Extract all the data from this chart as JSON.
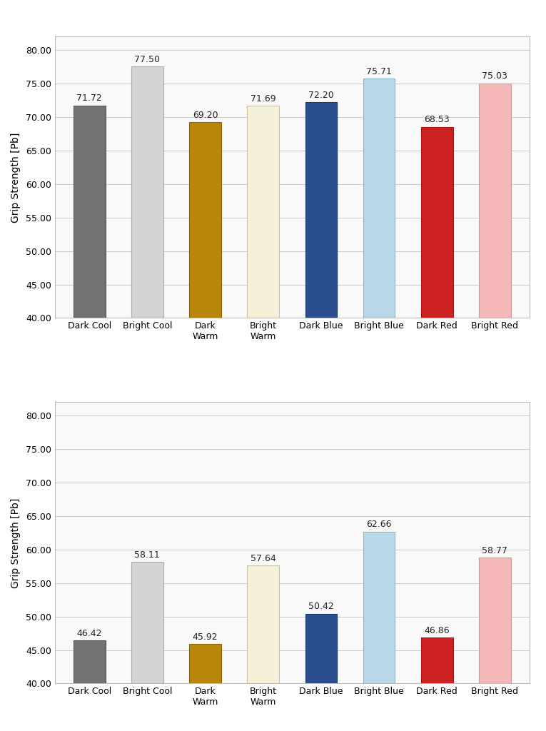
{
  "top_chart": {
    "categories": [
      "Dark Cool",
      "Bright Cool",
      "Dark\nWarm",
      "Bright\nWarm",
      "Dark Blue",
      "Bright Blue",
      "Dark Red",
      "Bright Red"
    ],
    "values": [
      71.72,
      77.5,
      69.2,
      71.69,
      72.2,
      75.71,
      68.53,
      75.03
    ],
    "bar_colors": [
      "#737373",
      "#d4d4d4",
      "#b8860b",
      "#f5f0d8",
      "#2b4f8e",
      "#b8d8ea",
      "#cc2222",
      "#f4b8b8"
    ],
    "bar_edge_colors": [
      "#555555",
      "#aaaaaa",
      "#8b6508",
      "#c8c4a0",
      "#1a3a6e",
      "#88b8d0",
      "#aa1111",
      "#d89898"
    ],
    "ylabel": "Grip Strength [Pb]",
    "ylim": [
      40.0,
      82.0
    ],
    "yticks": [
      40.0,
      45.0,
      50.0,
      55.0,
      60.0,
      65.0,
      70.0,
      75.0,
      80.0
    ]
  },
  "bottom_chart": {
    "categories": [
      "Dark Cool",
      "Bright Cool",
      "Dark\nWarm",
      "Bright\nWarm",
      "Dark Blue",
      "Bright Blue",
      "Dark Red",
      "Bright Red"
    ],
    "values": [
      46.42,
      58.11,
      45.92,
      57.64,
      50.42,
      62.66,
      46.86,
      58.77
    ],
    "bar_colors": [
      "#737373",
      "#d4d4d4",
      "#b8860b",
      "#f5f0d8",
      "#2b4f8e",
      "#b8d8ea",
      "#cc2222",
      "#f4b8b8"
    ],
    "bar_edge_colors": [
      "#555555",
      "#aaaaaa",
      "#8b6508",
      "#c8c4a0",
      "#1a3a6e",
      "#88b8d0",
      "#aa1111",
      "#d89898"
    ],
    "ylabel": "Grip Strength [Pb]",
    "ylim": [
      40.0,
      82.0
    ],
    "yticks": [
      40.0,
      45.0,
      50.0,
      55.0,
      60.0,
      65.0,
      70.0,
      75.0,
      80.0
    ]
  },
  "background_color": "#ffffff",
  "panel_background": "#f9f9f9",
  "grid_color": "#cccccc",
  "label_fontsize": 10,
  "tick_fontsize": 9,
  "value_fontsize": 9,
  "bar_width": 0.55
}
